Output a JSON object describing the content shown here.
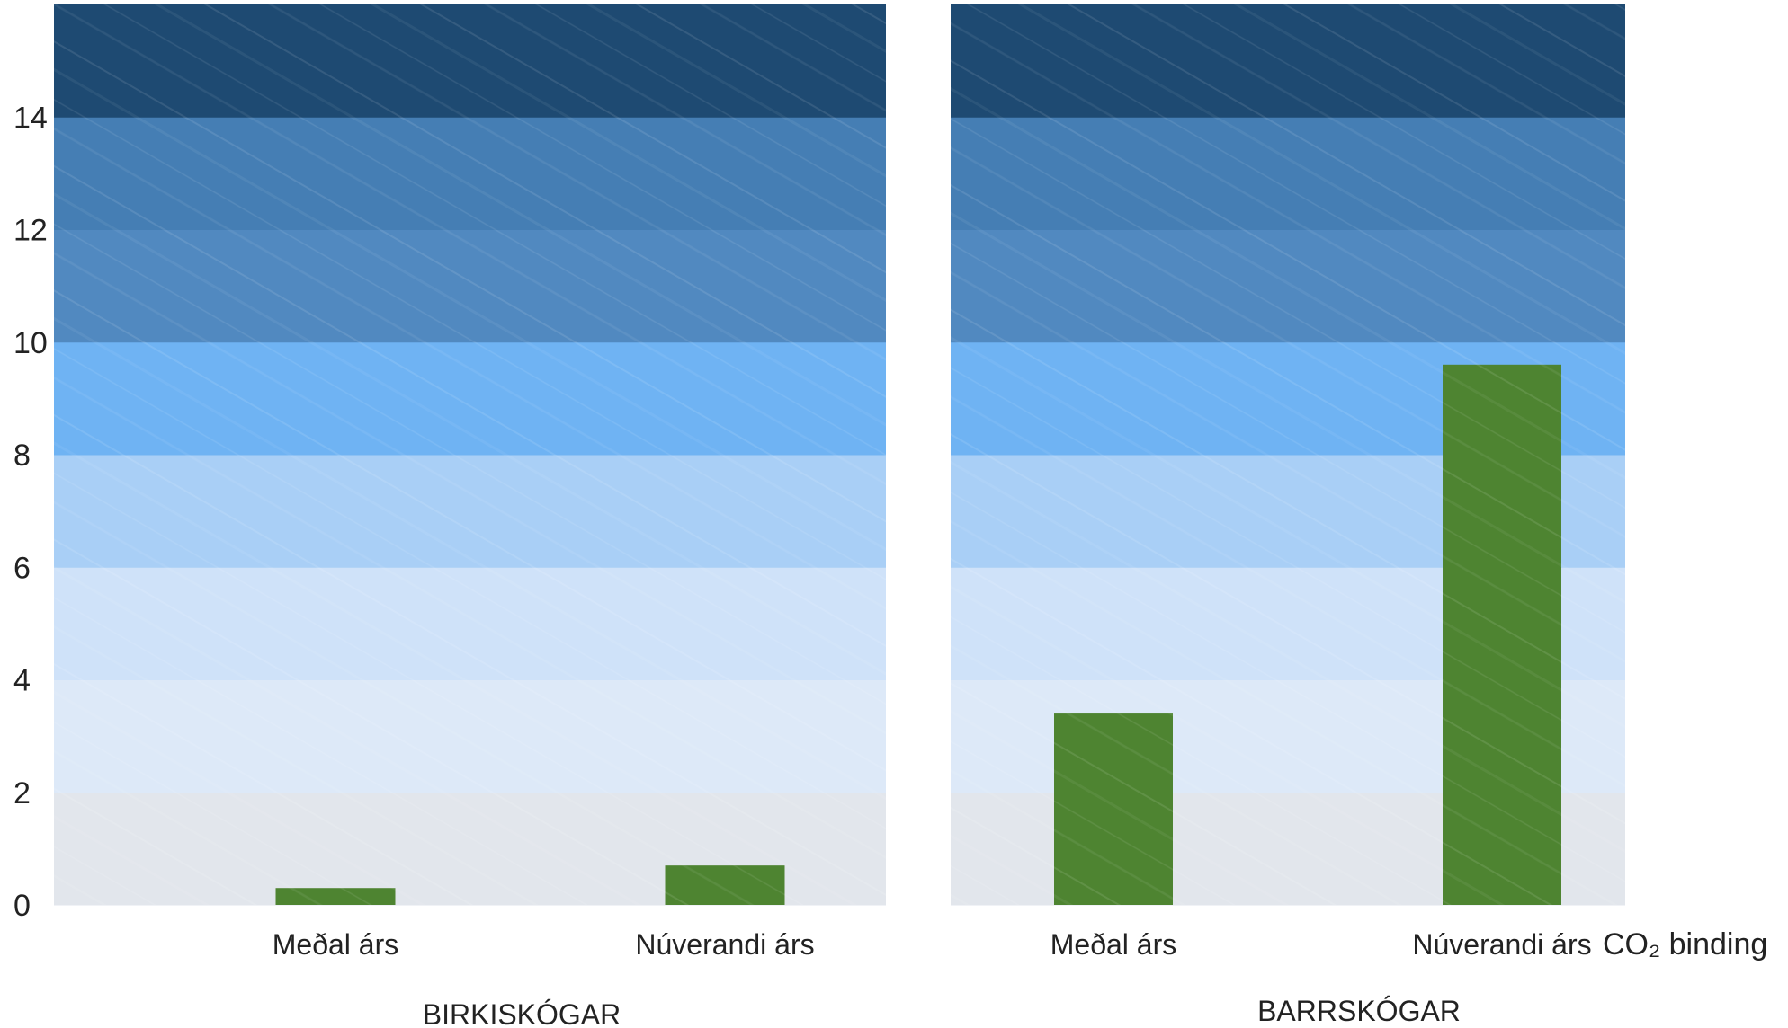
{
  "chart_data": {
    "type": "bar",
    "ylim": [
      0,
      16
    ],
    "yticks": [
      0,
      2,
      4,
      6,
      8,
      10,
      12,
      14
    ],
    "ytick_labels": [
      "0",
      "2",
      "4",
      "6",
      "8",
      "10",
      "12",
      "14"
    ],
    "band_colors": [
      "#e2e6ec",
      "#dde9f8",
      "#cfe2f9",
      "#a9cff6",
      "#6fb3f3",
      "#5189c0",
      "#457eb4",
      "#1e4a72"
    ],
    "bar_color": "#4e8431",
    "grid": false,
    "panels": [
      {
        "group_label": "BIRKISKÓGAR",
        "categories": [
          "Meðal árs",
          "Núverandi árs"
        ],
        "values": [
          0.3,
          0.7
        ]
      },
      {
        "group_label": "BARRSKÓGAR",
        "categories": [
          "Meðal árs",
          "Núverandi árs"
        ],
        "values": [
          3.4,
          9.6
        ]
      }
    ],
    "series_label": "CO₂ binding"
  }
}
